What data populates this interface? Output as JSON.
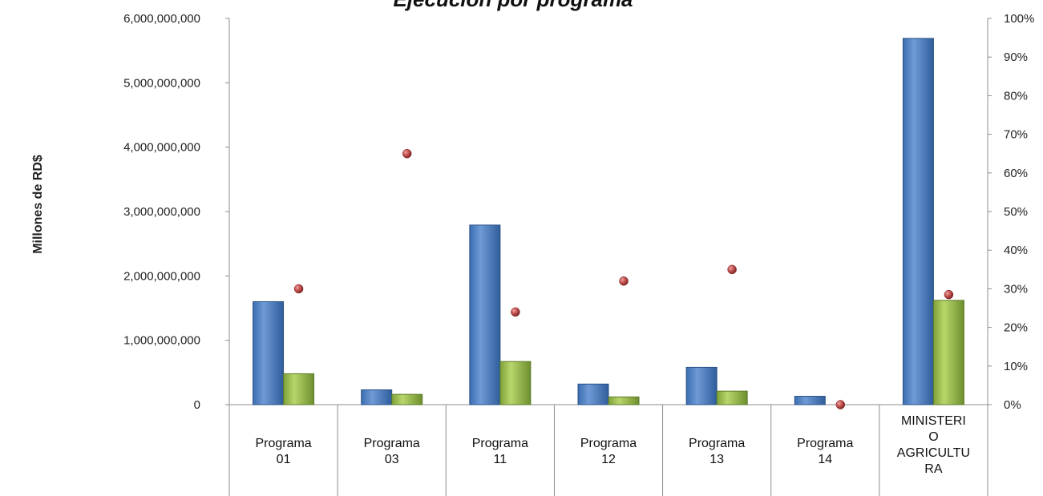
{
  "chart_data": {
    "type": "bar",
    "title": "Ejecución por programa",
    "ylabel": "Millones de RD$",
    "xlabel": "",
    "categories": [
      [
        "Programa",
        "01"
      ],
      [
        "Programa",
        "03"
      ],
      [
        "Programa",
        "11"
      ],
      [
        "Programa",
        "12"
      ],
      [
        "Programa",
        "13"
      ],
      [
        "Programa",
        "14"
      ],
      [
        "MINISTERI",
        "O",
        "AGRICULTU",
        "RA"
      ]
    ],
    "series": [
      {
        "kind": "bar",
        "axis": "left",
        "color": "#4f81bd",
        "values": [
          1600000000,
          230000000,
          2790000000,
          320000000,
          580000000,
          130000000,
          5690000000
        ]
      },
      {
        "kind": "bar",
        "axis": "left",
        "color": "#9bbb59",
        "values": [
          480000000,
          160000000,
          670000000,
          120000000,
          210000000,
          0,
          1620000000
        ]
      },
      {
        "kind": "scatter",
        "axis": "right",
        "color": "#c0504d",
        "values": [
          0.3,
          0.65,
          0.24,
          0.32,
          0.35,
          0.0,
          0.285
        ]
      }
    ],
    "ylim": [
      0,
      6000000000
    ],
    "yticks": [
      "0",
      "1,000,000,000",
      "2,000,000,000",
      "3,000,000,000",
      "4,000,000,000",
      "5,000,000,000",
      "6,000,000,000"
    ],
    "ytick_values": [
      0,
      1000000000,
      2000000000,
      3000000000,
      4000000000,
      5000000000,
      6000000000
    ],
    "y2lim": [
      0,
      1
    ],
    "y2ticks": [
      "0%",
      "10%",
      "20%",
      "30%",
      "40%",
      "50%",
      "60%",
      "70%",
      "80%",
      "90%",
      "100%"
    ],
    "y2tick_values": [
      0,
      0.1,
      0.2,
      0.3,
      0.4,
      0.5,
      0.6,
      0.7,
      0.8,
      0.9,
      1.0
    ],
    "grid": false,
    "legend": "none"
  }
}
